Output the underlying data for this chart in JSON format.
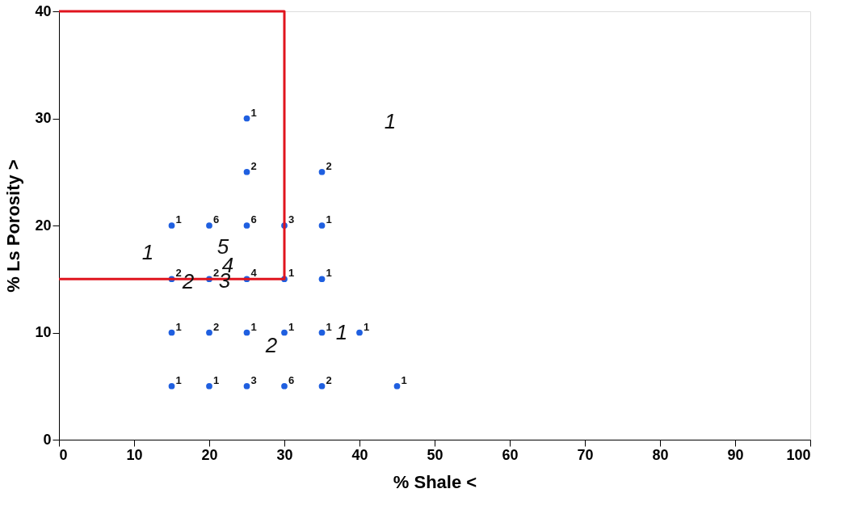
{
  "chart_data": {
    "type": "scatter",
    "xlabel": "% Shale <",
    "ylabel": "% Ls Porosity >",
    "xlim": [
      0,
      100
    ],
    "ylim": [
      0,
      40
    ],
    "xticks": [
      0,
      10,
      20,
      30,
      40,
      50,
      60,
      70,
      80,
      90,
      100
    ],
    "yticks": [
      0,
      10,
      20,
      30,
      40
    ],
    "grid": false,
    "marker": "circle",
    "series": [
      {
        "color": "#1f5fe0",
        "x": [
          25,
          25,
          35,
          15,
          20,
          25,
          30,
          35,
          15,
          20,
          25,
          30,
          35,
          15,
          20,
          25,
          30,
          35,
          40,
          15,
          20,
          25,
          30,
          35,
          45
        ],
        "values": [
          30,
          25,
          25,
          20,
          20,
          20,
          20,
          20,
          15,
          15,
          15,
          15,
          15,
          10,
          10,
          10,
          10,
          10,
          10,
          5,
          5,
          5,
          5,
          5,
          5
        ]
      },
      {
        "type": "line",
        "marker": "none",
        "color": "#e0141e",
        "x": [
          0,
          30,
          30,
          0
        ],
        "values": [
          40,
          40,
          15,
          15
        ]
      }
    ],
    "annotations": [
      {
        "text": "1",
        "x": 25,
        "y": 30
      },
      {
        "text": "2",
        "x": 25,
        "y": 25
      },
      {
        "text": "2",
        "x": 35,
        "y": 25
      },
      {
        "text": "1",
        "x": 15,
        "y": 20
      },
      {
        "text": "6",
        "x": 20,
        "y": 20
      },
      {
        "text": "6",
        "x": 25,
        "y": 20
      },
      {
        "text": "3",
        "x": 30,
        "y": 20
      },
      {
        "text": "1",
        "x": 35,
        "y": 20
      },
      {
        "text": "2",
        "x": 15,
        "y": 15
      },
      {
        "text": "2",
        "x": 20,
        "y": 15
      },
      {
        "text": "4",
        "x": 25,
        "y": 15
      },
      {
        "text": "1",
        "x": 30,
        "y": 15
      },
      {
        "text": "1",
        "x": 35,
        "y": 15
      },
      {
        "text": "1",
        "x": 15,
        "y": 10
      },
      {
        "text": "2",
        "x": 20,
        "y": 10
      },
      {
        "text": "1",
        "x": 25,
        "y": 10
      },
      {
        "text": "1",
        "x": 30,
        "y": 10
      },
      {
        "text": "1",
        "x": 35,
        "y": 10
      },
      {
        "text": "1",
        "x": 40,
        "y": 10
      },
      {
        "text": "1",
        "x": 15,
        "y": 5
      },
      {
        "text": "1",
        "x": 20,
        "y": 5
      },
      {
        "text": "3",
        "x": 25,
        "y": 5
      },
      {
        "text": "6",
        "x": 30,
        "y": 5
      },
      {
        "text": "2",
        "x": 35,
        "y": 5
      },
      {
        "text": "1",
        "x": 45,
        "y": 5
      },
      "1",
      "1",
      "1",
      "2",
      "2",
      "3",
      "4",
      "5"
    ]
  }
}
